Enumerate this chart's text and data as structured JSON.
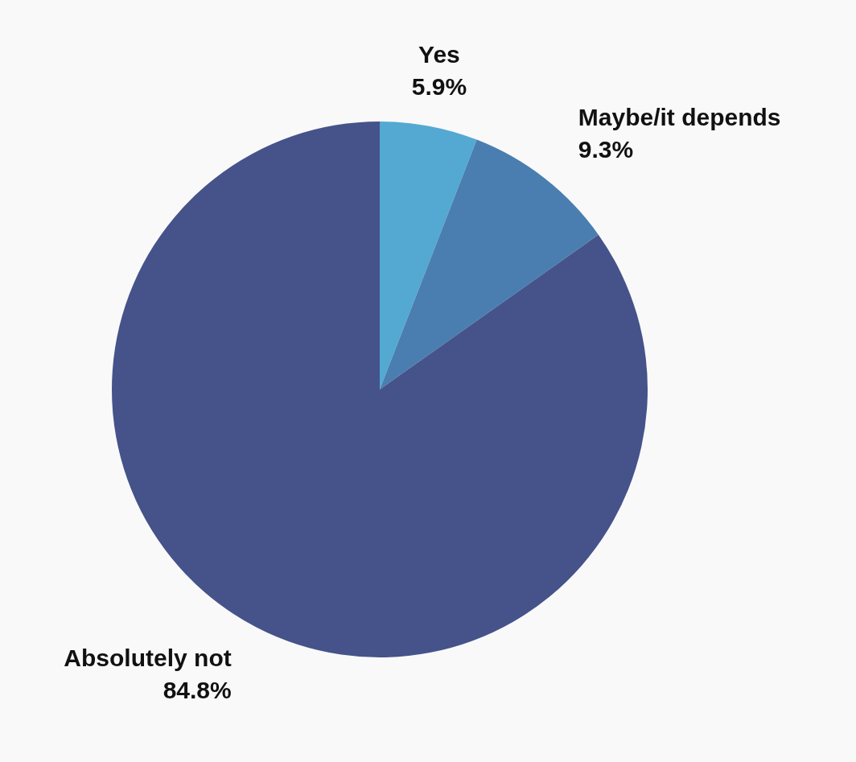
{
  "chart_data": {
    "type": "pie",
    "categories": [
      "Yes",
      "Maybe/it depends",
      "Absolutely not"
    ],
    "values": [
      5.9,
      9.3,
      84.8
    ],
    "value_labels": [
      "5.9%",
      "9.3%",
      "84.8%"
    ],
    "colors": [
      "#53a9d2",
      "#4a7eb0",
      "#45538a"
    ],
    "legend": false
  }
}
